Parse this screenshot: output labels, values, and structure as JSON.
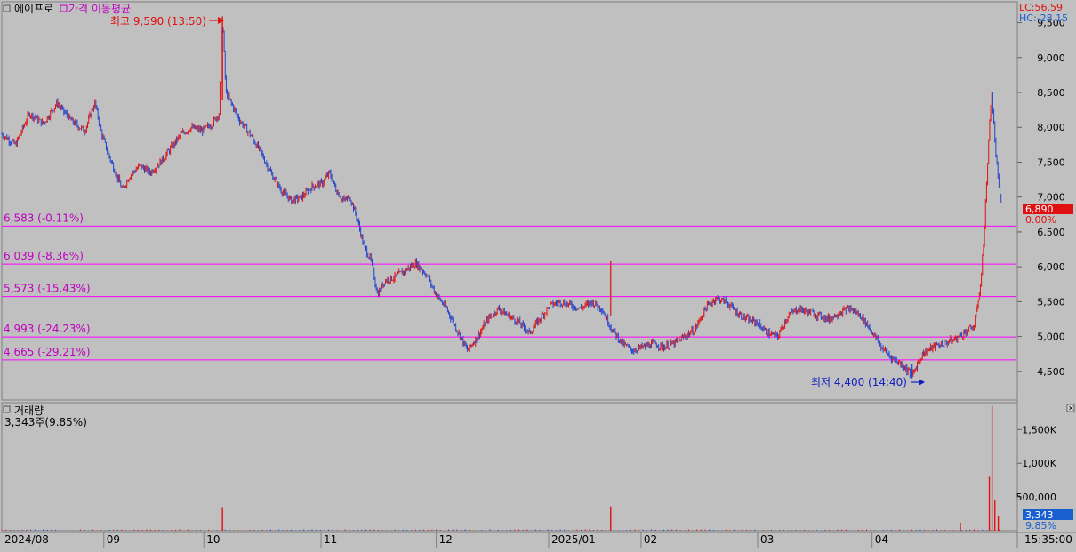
{
  "colors": {
    "background": "#c0c0c0",
    "up": "#e01010",
    "down": "#2244cc",
    "level_line": "#ff00ff",
    "level_text": "#c000c0",
    "high_annot": "#e01010",
    "low_annot": "#1020c0",
    "price_badge": "#e01010",
    "volume_badge": "#1a5fd0",
    "grid": "#a8a8a8",
    "axis_text": "#000000"
  },
  "header": {
    "symbol": "에이프로",
    "indicator": "가격 이동평균",
    "lc_label": "LC:56.59",
    "hc_label": "HC:-28.15"
  },
  "volume_header": {
    "title": "거래량",
    "value_text": "3,343주(9.85%)"
  },
  "annotations": {
    "high": "최고 9,590 (13:50)",
    "low": "최저 4,400 (14:40)"
  },
  "badges": {
    "price": "6,890",
    "price_pct": "0.00%",
    "volume": "3,343",
    "volume_pct": "9.85%"
  },
  "time_label": "15:35:00",
  "chart_data": {
    "type": "candlestick",
    "x_ticks": [
      "2024/08",
      "09",
      "10",
      "11",
      "12",
      "2025/01",
      "02",
      "03",
      "04"
    ],
    "price_axis": {
      "ticks": [
        4500,
        5000,
        5500,
        6000,
        6500,
        7000,
        7500,
        8000,
        8500,
        9000,
        9500
      ],
      "tick_labels": [
        "4,500",
        "5,000",
        "5,500",
        "6,000",
        "6,500",
        "7,000",
        "7,500",
        "8,000",
        "8,500",
        "9,000",
        "9,500"
      ],
      "range": [
        4090,
        9800
      ]
    },
    "volume_axis": {
      "ticks": [
        500000,
        1000000,
        1500000
      ],
      "tick_labels": [
        "500,000",
        "1,000K",
        "1,500K"
      ],
      "range": [
        0,
        1900000
      ]
    },
    "levels": [
      {
        "value": 6583,
        "label": "6,583 (-0.11%)"
      },
      {
        "value": 6039,
        "label": "6,039 (-8.36%)"
      },
      {
        "value": 5573,
        "label": "5,573 (-15.43%)"
      },
      {
        "value": 4993,
        "label": "4,993 (-24.23%)"
      },
      {
        "value": 4665,
        "label": "4,665 (-29.21%)"
      }
    ],
    "price_path": [
      [
        0,
        7900
      ],
      [
        0.02,
        7750
      ],
      [
        0.04,
        8200
      ],
      [
        0.06,
        8050
      ],
      [
        0.08,
        8350
      ],
      [
        0.1,
        8100
      ],
      [
        0.12,
        7950
      ],
      [
        0.135,
        8350
      ],
      [
        0.145,
        7900
      ],
      [
        0.155,
        7600
      ],
      [
        0.165,
        7350
      ],
      [
        0.175,
        7100
      ],
      [
        0.185,
        7300
      ],
      [
        0.2,
        7450
      ],
      [
        0.215,
        7350
      ],
      [
        0.23,
        7500
      ],
      [
        0.245,
        7700
      ],
      [
        0.26,
        7900
      ],
      [
        0.275,
        8000
      ],
      [
        0.29,
        7950
      ],
      [
        0.305,
        8050
      ],
      [
        0.315,
        8200
      ],
      [
        0.32,
        9590
      ],
      [
        0.325,
        8500
      ],
      [
        0.335,
        8300
      ],
      [
        0.345,
        8100
      ],
      [
        0.36,
        7900
      ],
      [
        0.375,
        7650
      ],
      [
        0.39,
        7350
      ],
      [
        0.405,
        7100
      ],
      [
        0.42,
        6950
      ],
      [
        0.435,
        7000
      ],
      [
        0.45,
        7150
      ],
      [
        0.465,
        7200
      ],
      [
        0.475,
        7350
      ],
      [
        0.485,
        7100
      ],
      [
        0.495,
        6950
      ],
      [
        0.505,
        7000
      ],
      [
        0.515,
        6700
      ],
      [
        0.525,
        6300
      ],
      [
        0.535,
        6100
      ],
      [
        0.545,
        5600
      ],
      [
        0.555,
        5800
      ],
      [
        0.57,
        5850
      ],
      [
        0.585,
        5950
      ],
      [
        0.6,
        6050
      ],
      [
        0.615,
        5900
      ],
      [
        0.63,
        5600
      ],
      [
        0.645,
        5400
      ],
      [
        0.66,
        5100
      ],
      [
        0.675,
        4800
      ],
      [
        0.69,
        5000
      ],
      [
        0.705,
        5250
      ],
      [
        0.72,
        5400
      ],
      [
        0.735,
        5300
      ],
      [
        0.75,
        5200
      ],
      [
        0.765,
        5050
      ],
      [
        0.78,
        5250
      ],
      [
        0.795,
        5450
      ],
      [
        0.81,
        5500
      ],
      [
        0.825,
        5450
      ],
      [
        0.84,
        5400
      ],
      [
        0.855,
        5500
      ],
      [
        0.87,
        5400
      ],
      [
        0.885,
        5100
      ],
      [
        0.9,
        4900
      ],
      [
        0.915,
        4800
      ],
      [
        0.93,
        4850
      ],
      [
        0.945,
        4900
      ],
      [
        0.96,
        4850
      ],
      [
        0.975,
        4900
      ],
      [
        0.99,
        5000
      ],
      [
        1.005,
        5100
      ],
      [
        1.02,
        5400
      ],
      [
        1.035,
        5550
      ],
      [
        1.05,
        5500
      ],
      [
        1.065,
        5350
      ],
      [
        1.08,
        5250
      ],
      [
        1.095,
        5200
      ],
      [
        1.11,
        5050
      ],
      [
        1.125,
        5000
      ],
      [
        1.14,
        5300
      ],
      [
        1.155,
        5400
      ],
      [
        1.17,
        5350
      ],
      [
        1.185,
        5300
      ],
      [
        1.2,
        5250
      ],
      [
        1.215,
        5350
      ],
      [
        1.23,
        5400
      ],
      [
        1.245,
        5300
      ],
      [
        1.26,
        5100
      ],
      [
        1.275,
        4850
      ],
      [
        1.29,
        4700
      ],
      [
        1.305,
        4600
      ],
      [
        1.32,
        4450
      ],
      [
        1.335,
        4750
      ],
      [
        1.35,
        4850
      ],
      [
        1.365,
        4900
      ],
      [
        1.38,
        4950
      ],
      [
        1.395,
        5050
      ],
      [
        1.41,
        5150
      ],
      [
        1.42,
        5800
      ],
      [
        1.425,
        6600
      ],
      [
        1.43,
        7600
      ],
      [
        1.435,
        8550
      ],
      [
        1.44,
        7800
      ],
      [
        1.445,
        7200
      ],
      [
        1.45,
        6890
      ]
    ],
    "volume_spikes": [
      {
        "x": 0.32,
        "value": 350000
      },
      {
        "x": 0.883,
        "value": 360000
      },
      {
        "x": 1.39,
        "value": 120000
      },
      {
        "x": 1.432,
        "value": 800000
      },
      {
        "x": 1.436,
        "value": 1850000
      },
      {
        "x": 1.44,
        "value": 450000
      },
      {
        "x": 1.445,
        "value": 220000
      },
      {
        "x": 1.45,
        "value": 3343
      }
    ]
  }
}
